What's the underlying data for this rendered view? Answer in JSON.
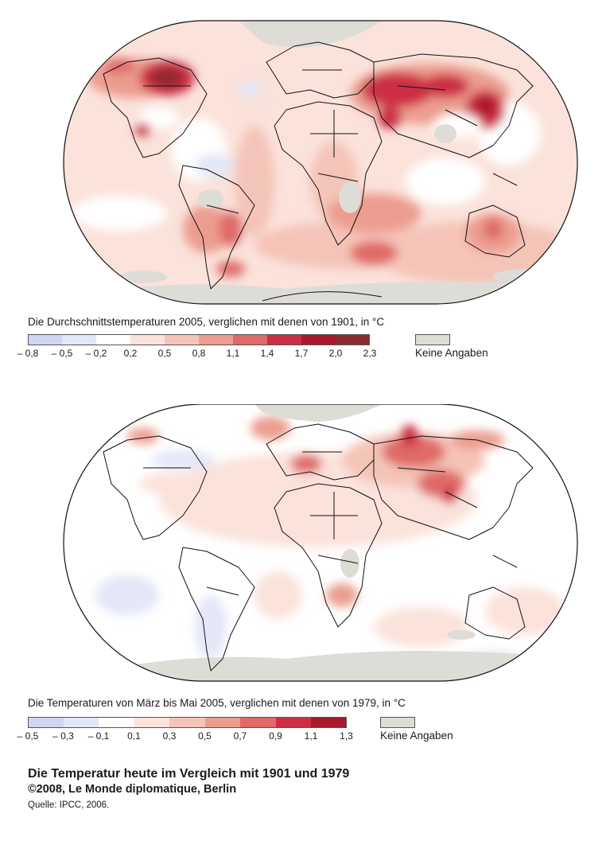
{
  "maps": [
    {
      "caption": "Die Durchschnittstemperaturen 2005, verglichen mit denen von 1901,  in °C",
      "legend": {
        "ticks": [
          "– 0,8",
          "– 0,5",
          "– 0,2",
          "0,2",
          "0,5",
          "0,8",
          "1,1",
          "1,4",
          "1,7",
          "2,0",
          "2,3"
        ],
        "colors": [
          "#cfd6f2",
          "#e3e7f7",
          "#ffffff",
          "#fbe2db",
          "#f5c4b8",
          "#ec9d8f",
          "#df6a67",
          "#cc2f45",
          "#a8192c",
          "#8e2b2d"
        ],
        "no_data_label": "Keine Angaben"
      }
    },
    {
      "caption": "Die Temperaturen von März bis Mai 2005, verglichen mit denen von 1979,  in °C",
      "legend": {
        "ticks": [
          "– 0,5",
          "– 0,3",
          "– 0,1",
          "0,1",
          "0,3",
          "0,5",
          "0,7",
          "0,9",
          "1,1",
          "1,3"
        ],
        "colors": [
          "#cfd6f2",
          "#e3e7f7",
          "#ffffff",
          "#fbe2db",
          "#f5c4b8",
          "#ec9d8f",
          "#df6a67",
          "#cc2f45",
          "#a8192c"
        ],
        "no_data_label": "Keine Angaben"
      }
    }
  ],
  "footer": {
    "title": "Die Temperatur heute im Vergleich mit 1901 und 1979",
    "credit": "©2008, Le Monde diplomatique, Berlin",
    "source": "Quelle: IPCC, 2006."
  },
  "no_data_color": "#dedcd7"
}
